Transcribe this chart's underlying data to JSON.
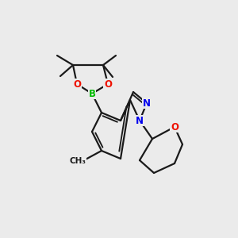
{
  "bg_color": "#ebebeb",
  "bond_color": "#1a1a1a",
  "bond_width": 1.6,
  "atom_colors": {
    "B": "#00bb00",
    "O": "#ee1100",
    "N": "#0000ee",
    "C": "#1a1a1a"
  },
  "font_size_atoms": 8.5,
  "font_size_methyl": 7.5
}
